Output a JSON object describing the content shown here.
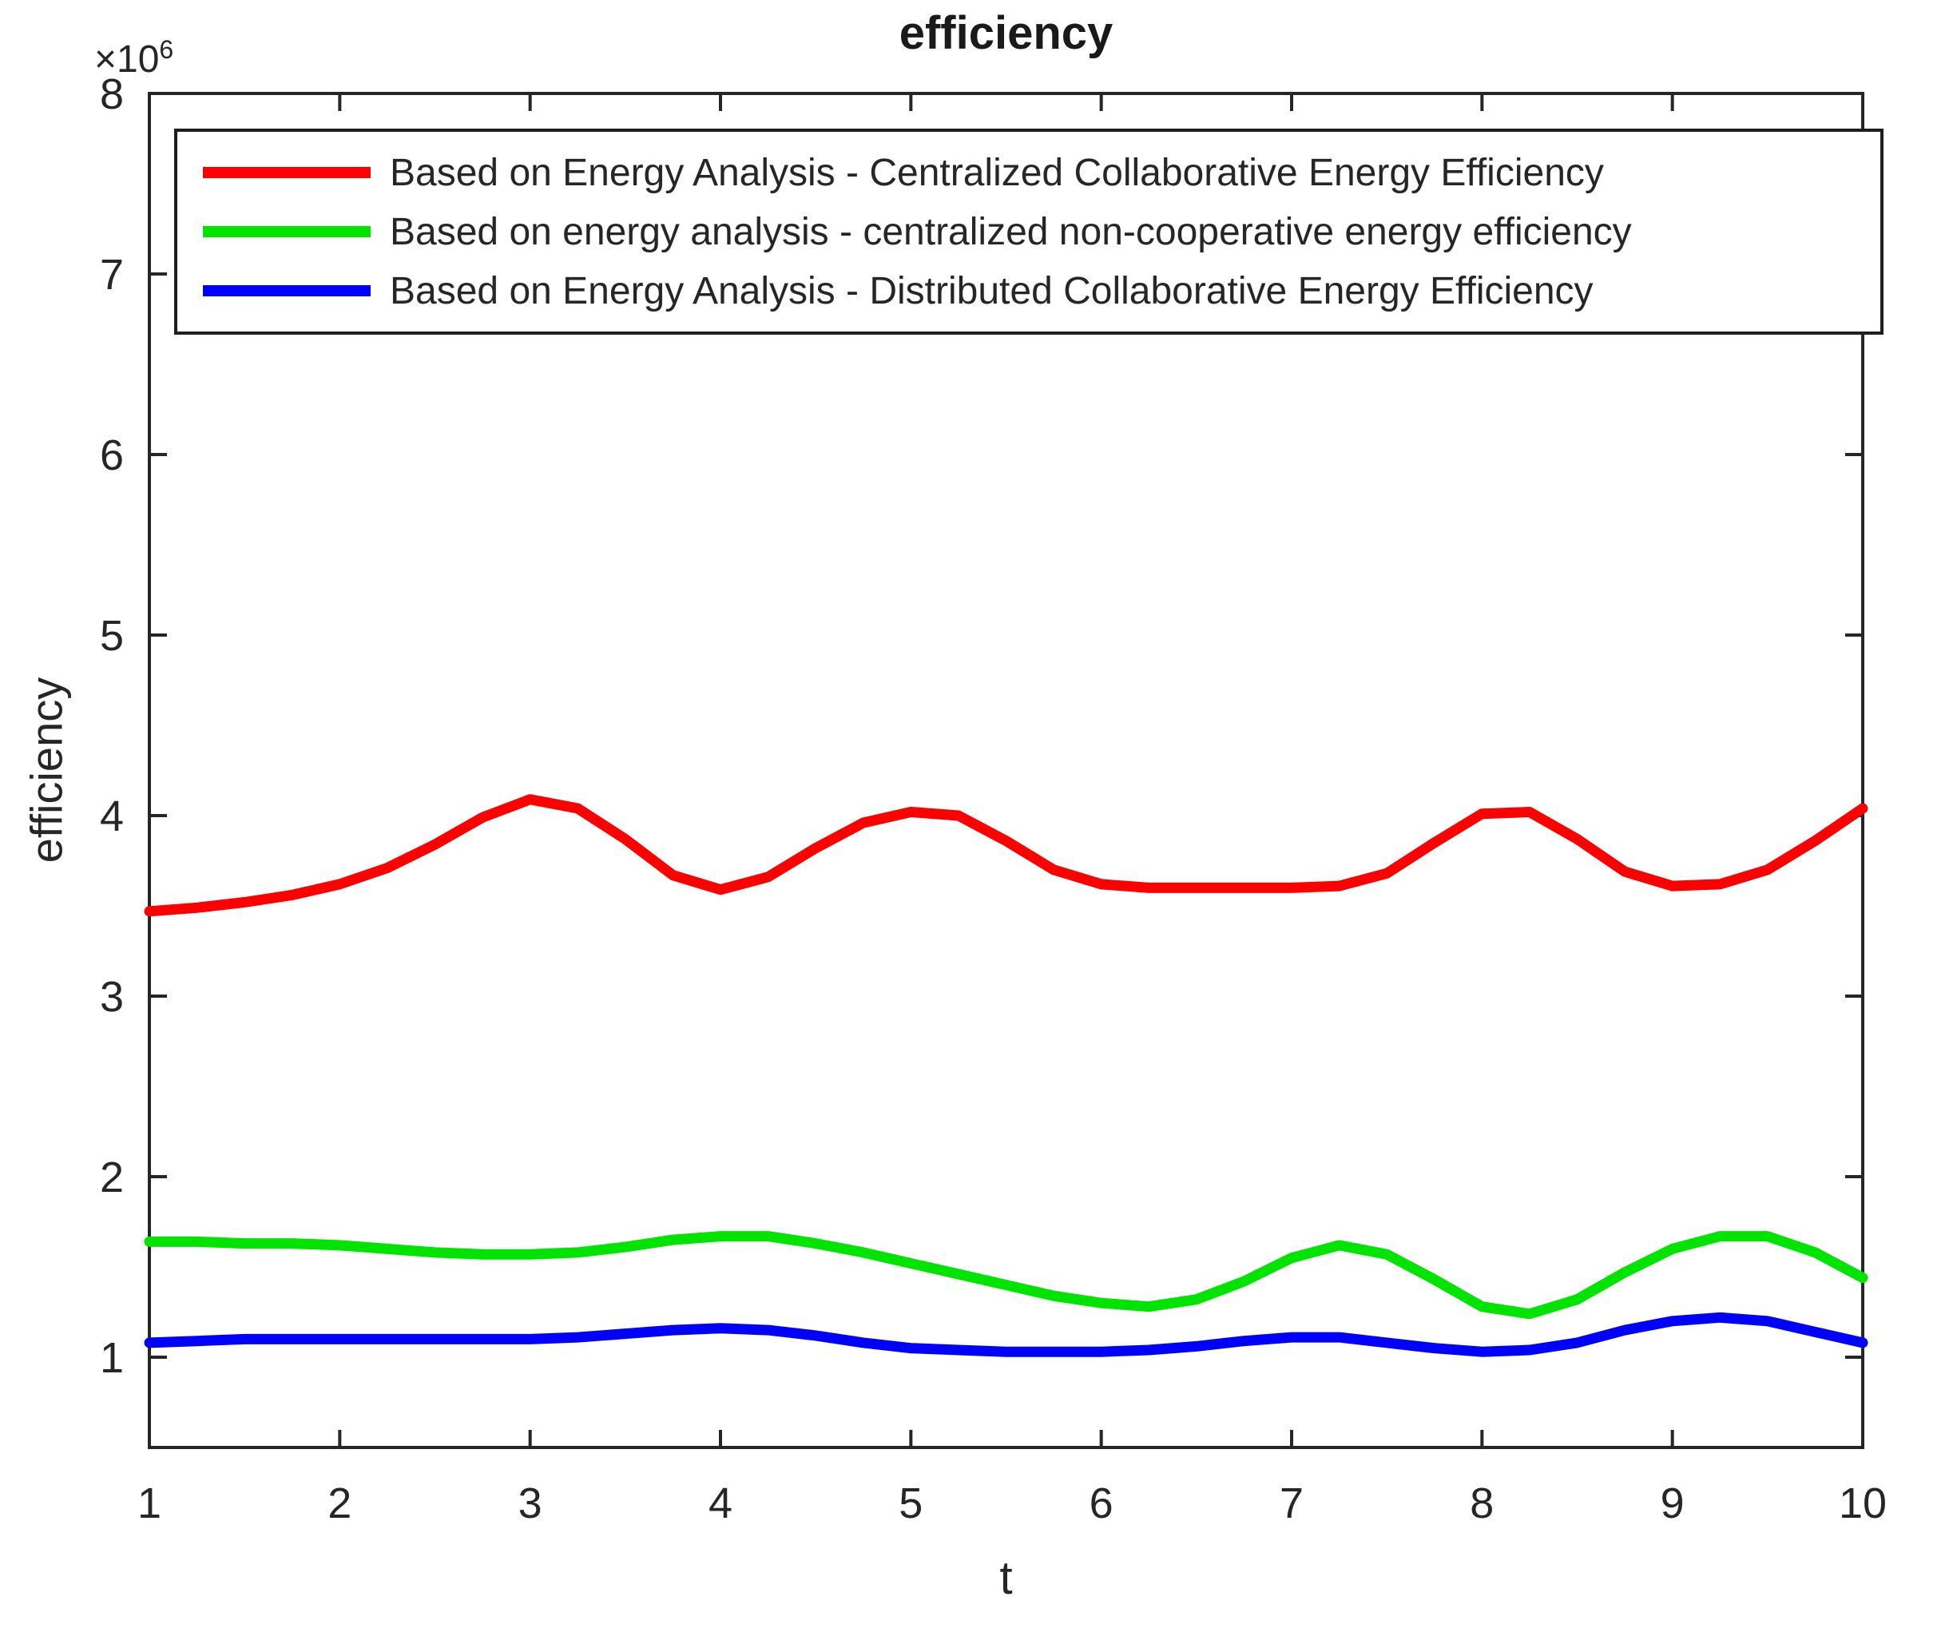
{
  "chart_data": {
    "type": "line",
    "title": "efficiency",
    "xlabel": "t",
    "ylabel": "efficiency",
    "y_multiplier_base": "×10",
    "y_multiplier_exp": "6",
    "y_unit_scale": 1000000,
    "xlim": [
      1,
      10
    ],
    "ylim": [
      0.5,
      8
    ],
    "x_ticks": [
      1,
      2,
      3,
      4,
      5,
      6,
      7,
      8,
      9,
      10
    ],
    "y_ticks": [
      1,
      2,
      3,
      4,
      5,
      6,
      7,
      8
    ],
    "grid": false,
    "legend_position": "top-inside",
    "axis_color": "#262626",
    "line_width": 13,
    "x": [
      1,
      1.25,
      1.5,
      1.75,
      2,
      2.25,
      2.5,
      2.75,
      3,
      3.25,
      3.5,
      3.75,
      4,
      4.25,
      4.5,
      4.75,
      5,
      5.25,
      5.5,
      5.75,
      6,
      6.25,
      6.5,
      6.75,
      7,
      7.25,
      7.5,
      7.75,
      8,
      8.25,
      8.5,
      8.75,
      9,
      9.25,
      9.5,
      9.75,
      10
    ],
    "series": [
      {
        "name": "Based on Energy Analysis - Centralized Collaborative Energy Efficiency",
        "color": "#ff0000",
        "values": [
          3.47,
          3.49,
          3.52,
          3.56,
          3.62,
          3.71,
          3.84,
          3.99,
          4.09,
          4.04,
          3.87,
          3.67,
          3.59,
          3.66,
          3.82,
          3.96,
          4.02,
          4.0,
          3.86,
          3.7,
          3.62,
          3.6,
          3.6,
          3.6,
          3.6,
          3.61,
          3.68,
          3.85,
          4.01,
          4.02,
          3.87,
          3.69,
          3.61,
          3.62,
          3.7,
          3.86,
          4.04
        ]
      },
      {
        "name": "Based on energy analysis - centralized non-cooperative energy efficiency",
        "color": "#00e400",
        "values": [
          1.64,
          1.64,
          1.63,
          1.63,
          1.62,
          1.6,
          1.58,
          1.57,
          1.57,
          1.58,
          1.61,
          1.65,
          1.67,
          1.67,
          1.63,
          1.58,
          1.52,
          1.46,
          1.4,
          1.34,
          1.3,
          1.28,
          1.32,
          1.42,
          1.55,
          1.62,
          1.57,
          1.43,
          1.28,
          1.24,
          1.32,
          1.47,
          1.6,
          1.67,
          1.67,
          1.58,
          1.44
        ]
      },
      {
        "name": "Based on Energy Analysis - Distributed Collaborative Energy Efficiency",
        "color": "#0000ff",
        "values": [
          1.08,
          1.09,
          1.1,
          1.1,
          1.1,
          1.1,
          1.1,
          1.1,
          1.1,
          1.11,
          1.13,
          1.15,
          1.16,
          1.15,
          1.12,
          1.08,
          1.05,
          1.04,
          1.03,
          1.03,
          1.03,
          1.04,
          1.06,
          1.09,
          1.11,
          1.11,
          1.08,
          1.05,
          1.03,
          1.04,
          1.08,
          1.15,
          1.2,
          1.22,
          1.2,
          1.14,
          1.08
        ]
      }
    ]
  }
}
